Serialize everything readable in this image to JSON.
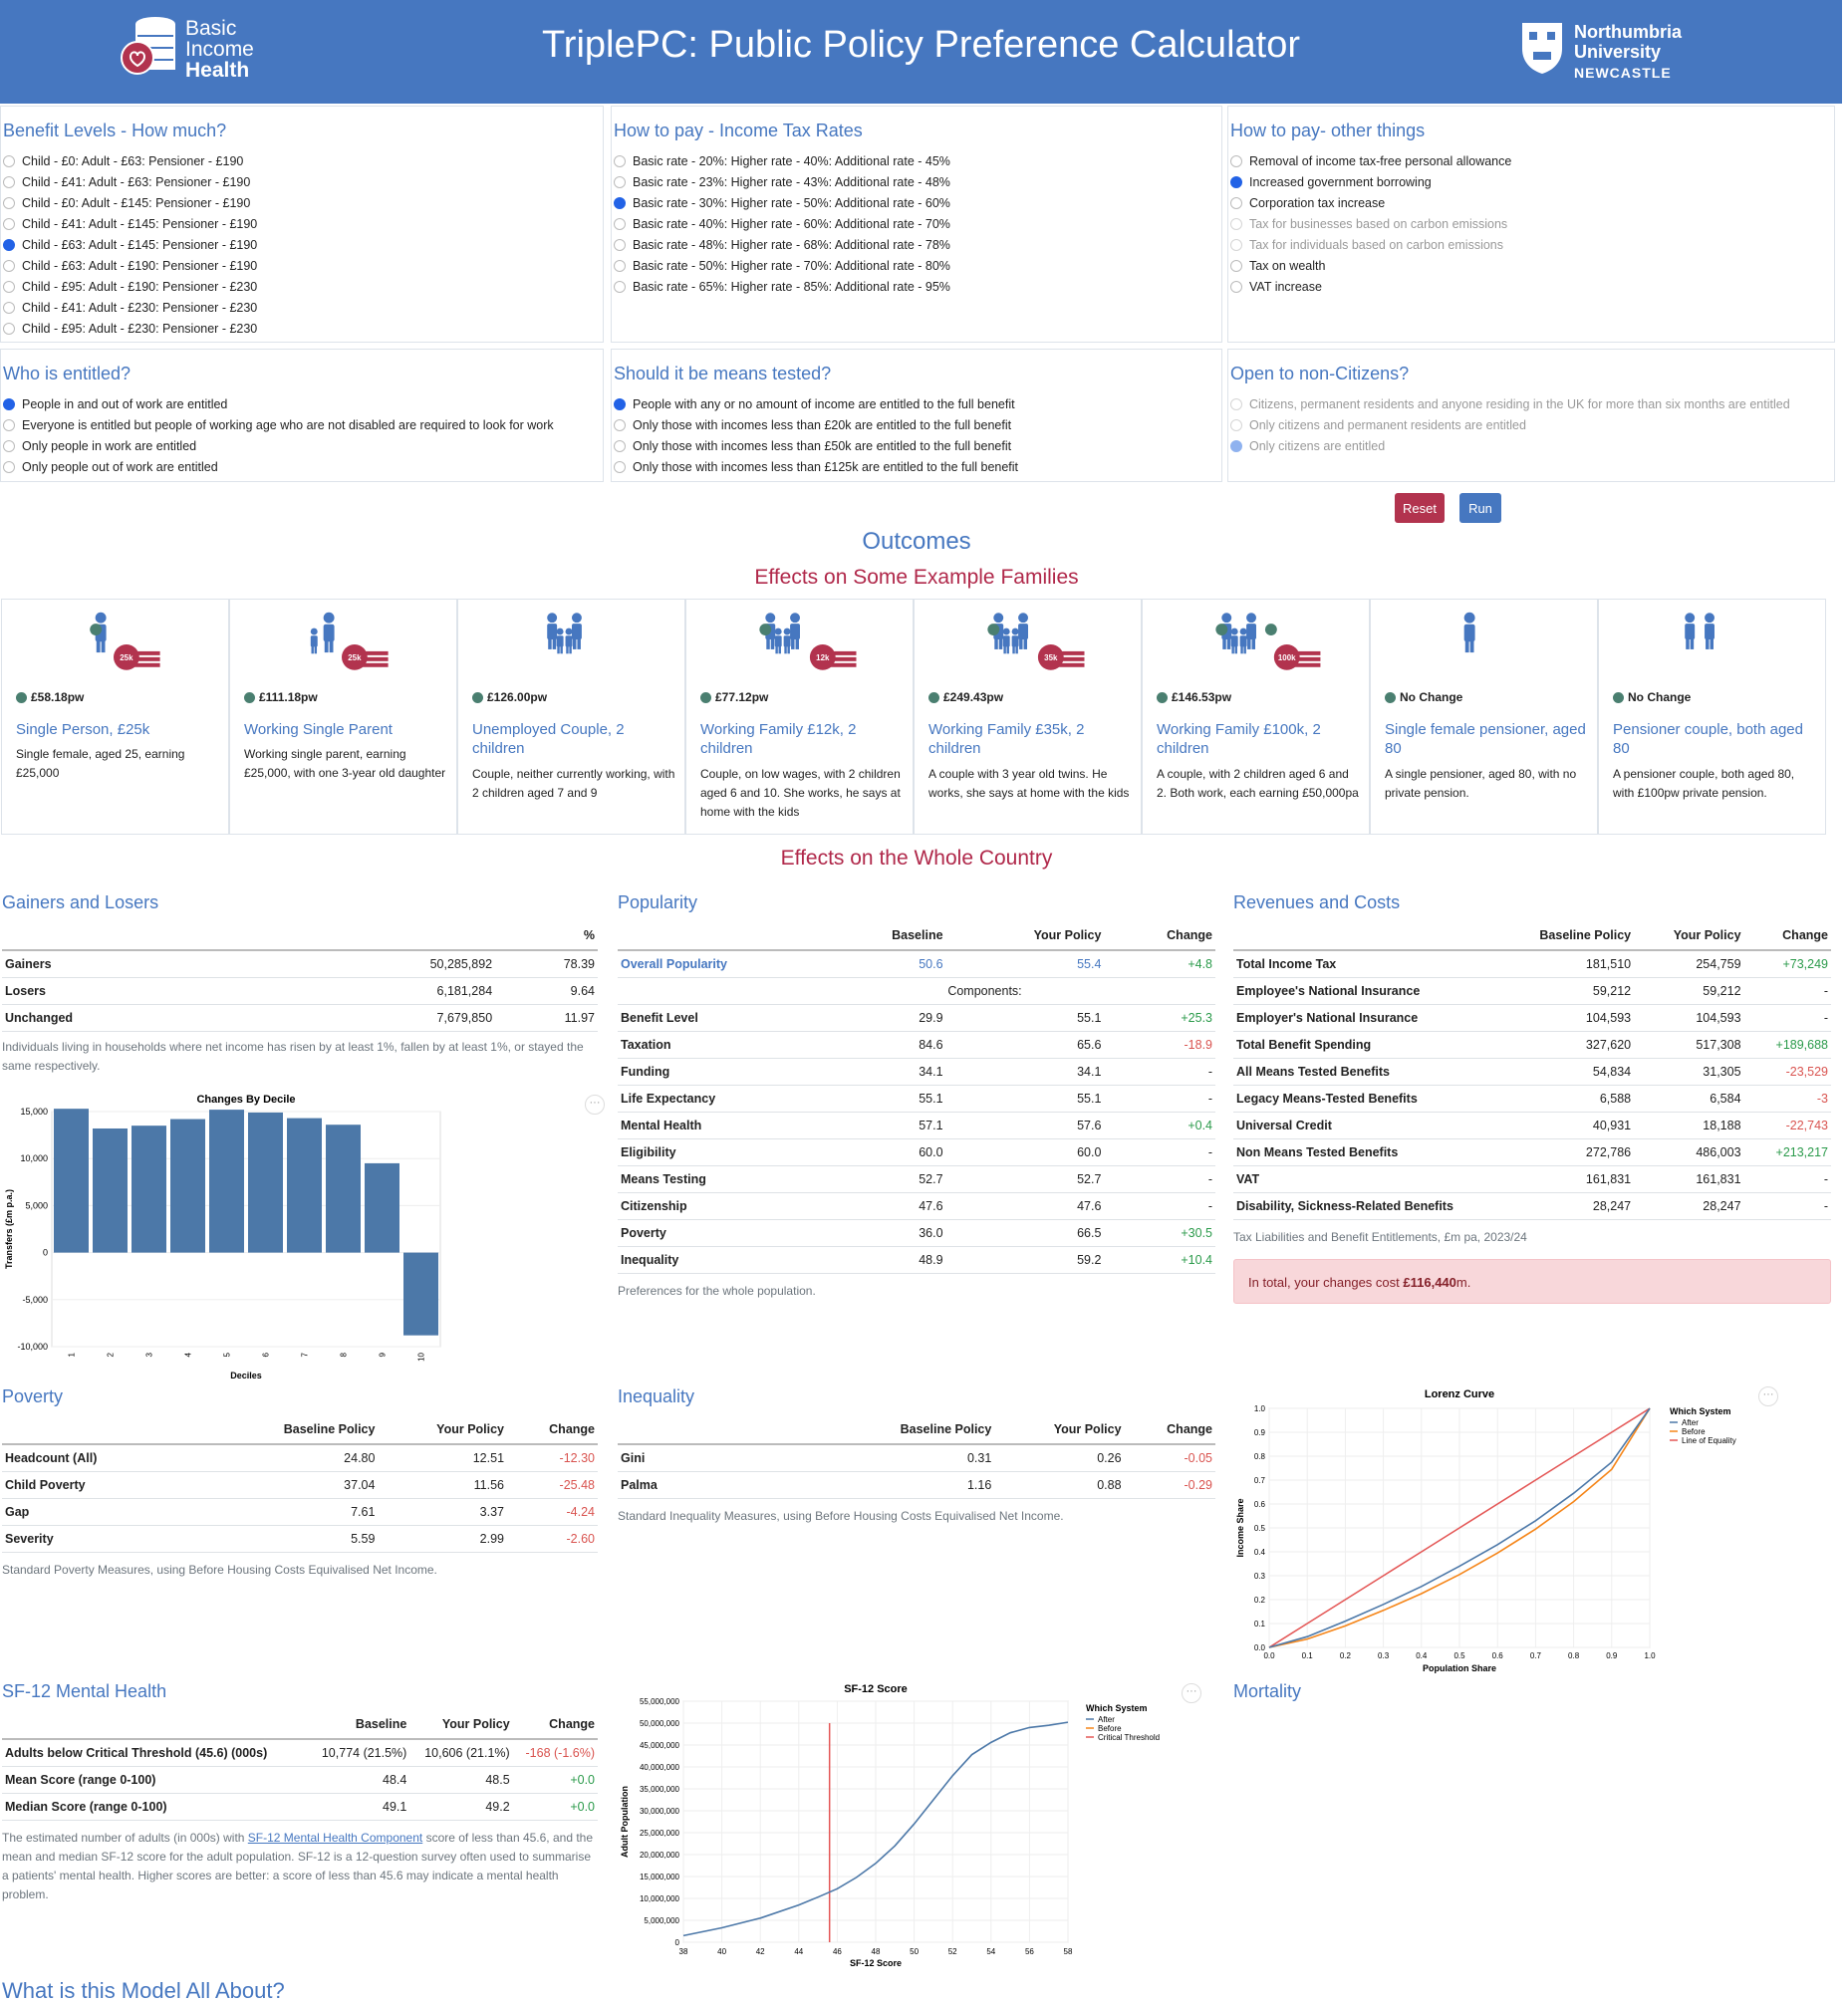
{
  "header": {
    "title": "TriplePC: Public Policy Preference Calculator",
    "logo_left": {
      "line1": "Basic",
      "line2": "Income",
      "line3": "Health"
    },
    "logo_right": {
      "line1": "Northumbria",
      "line2": "University",
      "line3": "NEWCASTLE"
    }
  },
  "panels": {
    "benefit_levels": {
      "title": "Benefit Levels - How much?",
      "selected": 4,
      "options": [
        "Child - £0: Adult - £63: Pensioner - £190",
        "Child - £41: Adult - £63: Pensioner - £190",
        "Child - £0: Adult - £145: Pensioner - £190",
        "Child - £41: Adult - £145: Pensioner - £190",
        "Child - £63: Adult - £145: Pensioner - £190",
        "Child - £63: Adult - £190: Pensioner - £190",
        "Child - £95: Adult - £190: Pensioner - £230",
        "Child - £41: Adult - £230: Pensioner - £230",
        "Child - £95: Adult - £230: Pensioner - £230"
      ]
    },
    "income_tax": {
      "title": "How to pay - Income Tax Rates",
      "selected": 2,
      "options": [
        "Basic rate - 20%: Higher rate - 40%: Additional rate - 45%",
        "Basic rate - 23%: Higher rate - 43%: Additional rate - 48%",
        "Basic rate - 30%: Higher rate - 50%: Additional rate - 60%",
        "Basic rate - 40%: Higher rate - 60%: Additional rate - 70%",
        "Basic rate - 48%: Higher rate - 68%: Additional rate - 78%",
        "Basic rate - 50%: Higher rate - 70%: Additional rate - 80%",
        "Basic rate - 65%: Higher rate - 85%: Additional rate - 95%"
      ]
    },
    "other_pay": {
      "title": "How to pay- other things",
      "selected": 1,
      "disabled": [
        3,
        4
      ],
      "options": [
        "Removal of income tax-free personal allowance",
        "Increased government borrowing",
        "Corporation tax increase",
        "Tax for businesses based on carbon emissions",
        "Tax for individuals based on carbon emissions",
        "Tax on wealth",
        "VAT increase"
      ]
    },
    "entitled": {
      "title": "Who is entitled?",
      "selected": 0,
      "options": [
        "People in and out of work are entitled",
        "Everyone is entitled but people of working age who are not disabled are required to look for work",
        "Only people in work are entitled",
        "Only people out of work are entitled"
      ]
    },
    "means_tested": {
      "title": "Should it be means tested?",
      "selected": 0,
      "options": [
        "People with any or no amount of income are entitled to the full benefit",
        "Only those with incomes less than £20k are entitled to the full benefit",
        "Only those with incomes less than £50k are entitled to the full benefit",
        "Only those with incomes less than £125k are entitled to the full benefit"
      ]
    },
    "citizens": {
      "title": "Open to non-Citizens?",
      "selected": 2,
      "disabled": [
        0,
        1,
        2
      ],
      "options": [
        "Citizens, permanent residents and anyone residing in the UK for more than six months are entitled",
        "Only citizens and permanent residents are entitled",
        "Only citizens are entitled"
      ]
    }
  },
  "buttons": {
    "reset": "Reset",
    "run": "Run"
  },
  "outcomes": {
    "title": "Outcomes",
    "families_title": "Effects on Some Example Families",
    "families": [
      {
        "amount": "£58.18pw",
        "name": "Single Person, £25k",
        "desc": "Single female, aged 25, earning £25,000",
        "badge": "25k",
        "icon": "single-person-icon"
      },
      {
        "amount": "£111.18pw",
        "name": "Working Single Parent",
        "desc": "Working single parent, earning £25,000, with one 3-year old daughter",
        "badge": "25k",
        "icon": "single-parent-icon"
      },
      {
        "amount": "£126.00pw",
        "name": "Unemployed Couple, 2 children",
        "desc": "Couple, neither currently working, with 2 children aged 7 and 9",
        "badge": "",
        "icon": "family-icon"
      },
      {
        "amount": "£77.12pw",
        "name": "Working Family £12k, 2 children",
        "desc": "Couple, on low wages, with 2 children aged 6 and 10. She works, he says at home with the kids",
        "badge": "12k",
        "icon": "family-icon"
      },
      {
        "amount": "£249.43pw",
        "name": "Working Family £35k, 2 children",
        "desc": "A couple with 3 year old twins. He works, she says at home with the kids",
        "badge": "35k",
        "icon": "family-icon"
      },
      {
        "amount": "£146.53pw",
        "name": "Working Family £100k, 2 children",
        "desc": "A couple, with 2 children aged 6 and 2. Both work, each earning £50,000pa",
        "badge": "100k",
        "icon": "family-icon"
      },
      {
        "amount": "No Change",
        "name": "Single female pensioner, aged 80",
        "desc": "A single pensioner, aged 80, with no private pension.",
        "badge": "",
        "icon": "pensioner-icon"
      },
      {
        "amount": "No Change",
        "name": "Pensioner couple, both aged 80",
        "desc": "A pensioner couple, both aged 80, with £100pw private pension.",
        "badge": "",
        "icon": "pensioner-couple-icon"
      }
    ],
    "whole_title": "Effects on the Whole Country"
  },
  "gainers": {
    "title": "Gainers and Losers",
    "pct_header": "%",
    "rows": [
      {
        "label": "Gainers",
        "count": "50,285,892",
        "pct": "78.39"
      },
      {
        "label": "Losers",
        "count": "6,181,284",
        "pct": "9.64"
      },
      {
        "label": "Unchanged",
        "count": "7,679,850",
        "pct": "11.97"
      }
    ],
    "note": "Individuals living in households where net income has risen by at least 1%, fallen by at least 1%, or stayed the same respectively."
  },
  "popularity": {
    "title": "Popularity",
    "headers": [
      "",
      "Baseline",
      "Your Policy",
      "Change"
    ],
    "overall": {
      "label": "Overall Popularity",
      "baseline": "50.6",
      "policy": "55.4",
      "change": "+4.8"
    },
    "components_label": "Components:",
    "rows": [
      {
        "label": "Benefit Level",
        "baseline": "29.9",
        "policy": "55.1",
        "change": "+25.3"
      },
      {
        "label": "Taxation",
        "baseline": "84.6",
        "policy": "65.6",
        "change": "-18.9"
      },
      {
        "label": "Funding",
        "baseline": "34.1",
        "policy": "34.1",
        "change": "-"
      },
      {
        "label": "Life Expectancy",
        "baseline": "55.1",
        "policy": "55.1",
        "change": "-"
      },
      {
        "label": "Mental Health",
        "baseline": "57.1",
        "policy": "57.6",
        "change": "+0.4"
      },
      {
        "label": "Eligibility",
        "baseline": "60.0",
        "policy": "60.0",
        "change": "-"
      },
      {
        "label": "Means Testing",
        "baseline": "52.7",
        "policy": "52.7",
        "change": "-"
      },
      {
        "label": "Citizenship",
        "baseline": "47.6",
        "policy": "47.6",
        "change": "-"
      },
      {
        "label": "Poverty",
        "baseline": "36.0",
        "policy": "66.5",
        "change": "+30.5"
      },
      {
        "label": "Inequality",
        "baseline": "48.9",
        "policy": "59.2",
        "change": "+10.4"
      }
    ],
    "note": "Preferences for the whole population."
  },
  "revenues": {
    "title": "Revenues and Costs",
    "headers": [
      "",
      "Baseline Policy",
      "Your Policy",
      "Change"
    ],
    "rows": [
      {
        "label": "Total Income Tax",
        "baseline": "181,510",
        "policy": "254,759",
        "change": "+73,249"
      },
      {
        "label": "Employee's National Insurance",
        "baseline": "59,212",
        "policy": "59,212",
        "change": "-"
      },
      {
        "label": "Employer's National Insurance",
        "baseline": "104,593",
        "policy": "104,593",
        "change": "-"
      },
      {
        "label": "Total Benefit Spending",
        "baseline": "327,620",
        "policy": "517,308",
        "change": "+189,688"
      },
      {
        "label": "All Means Tested Benefits",
        "baseline": "54,834",
        "policy": "31,305",
        "change": "-23,529"
      },
      {
        "label": "Legacy Means-Tested Benefits",
        "baseline": "6,588",
        "policy": "6,584",
        "change": "-3"
      },
      {
        "label": "Universal Credit",
        "baseline": "40,931",
        "policy": "18,188",
        "change": "-22,743"
      },
      {
        "label": "Non Means Tested Benefits",
        "baseline": "272,786",
        "policy": "486,003",
        "change": "+213,217"
      },
      {
        "label": "VAT",
        "baseline": "161,831",
        "policy": "161,831",
        "change": "-"
      },
      {
        "label": "Disability, Sickness-Related Benefits",
        "baseline": "28,247",
        "policy": "28,247",
        "change": "-"
      }
    ],
    "note": "Tax Liabilities and Benefit Entitlements, £m pa, 2023/24",
    "alert_prefix": "In total, your changes cost ",
    "alert_value": "£116,440",
    "alert_suffix": "m."
  },
  "poverty": {
    "title": "Poverty",
    "headers": [
      "",
      "Baseline Policy",
      "Your Policy",
      "Change"
    ],
    "rows": [
      {
        "label": "Headcount (All)",
        "baseline": "24.80",
        "policy": "12.51",
        "change": "-12.30"
      },
      {
        "label": "Child Poverty",
        "baseline": "37.04",
        "policy": "11.56",
        "change": "-25.48"
      },
      {
        "label": "Gap",
        "baseline": "7.61",
        "policy": "3.37",
        "change": "-4.24"
      },
      {
        "label": "Severity",
        "baseline": "5.59",
        "policy": "2.99",
        "change": "-2.60"
      }
    ],
    "note": "Standard Poverty Measures, using Before Housing Costs Equivalised Net Income."
  },
  "inequality": {
    "title": "Inequality",
    "headers": [
      "",
      "Baseline Policy",
      "Your Policy",
      "Change"
    ],
    "rows": [
      {
        "label": "Gini",
        "baseline": "0.31",
        "policy": "0.26",
        "change": "-0.05"
      },
      {
        "label": "Palma",
        "baseline": "1.16",
        "policy": "0.88",
        "change": "-0.29"
      }
    ],
    "note": "Standard Inequality Measures, using Before Housing Costs Equivalised Net Income."
  },
  "sf12": {
    "title": "SF-12 Mental Health",
    "headers": [
      "",
      "Baseline",
      "Your Policy",
      "Change"
    ],
    "rows": [
      {
        "label": "Adults below Critical Threshold (45.6) (000s)",
        "baseline": "10,774 (21.5%)",
        "policy": "10,606 (21.1%)",
        "change": "-168 (-1.6%)"
      },
      {
        "label": "Mean Score (range 0-100)",
        "baseline": "48.4",
        "policy": "48.5",
        "change": "+0.0"
      },
      {
        "label": "Median Score (range 0-100)",
        "baseline": "49.1",
        "policy": "49.2",
        "change": "+0.0"
      }
    ],
    "note_before": "The estimated number of adults (in 000s) with ",
    "note_link": "SF-12 Mental Health Component",
    "note_after": " score of less than 45.6, and the mean and median SF-12 score for the adult population. SF-12 is a 12-question survey often used to summarise a patients' mental health. Higher scores are better: a score of less than 45.6 may indicate a mental health problem."
  },
  "mortality": {
    "title": "Mortality"
  },
  "about": {
    "title": "What is this Model All About?"
  },
  "menu_dots": "···",
  "colors": {
    "header": "#4677c0",
    "accent_red": "#b0284a",
    "bar": "#4c78a8",
    "after": "#4c78a8",
    "before": "#f58518",
    "threshold": "#e45756"
  },
  "chart_data": [
    {
      "type": "bar",
      "title": "Changes By Decile",
      "xlabel": "Deciles",
      "ylabel": "Transfers (£m p.a.)",
      "categories": [
        "1",
        "2",
        "3",
        "4",
        "5",
        "6",
        "7",
        "8",
        "9",
        "10"
      ],
      "values": [
        15300,
        13200,
        13500,
        14200,
        15200,
        14900,
        14300,
        13600,
        9500,
        -8800
      ],
      "ylim": [
        -10000,
        15000
      ],
      "yticks": [
        "15,000",
        "10,000",
        "5,000",
        "0",
        "-5,000",
        "-10,000"
      ]
    },
    {
      "type": "line",
      "title": "Lorenz Curve",
      "xlabel": "Population Share",
      "ylabel": "Income Share",
      "xlim": [
        0,
        1
      ],
      "ylim": [
        0,
        1
      ],
      "ticks": [
        "0.0",
        "0.1",
        "0.2",
        "0.3",
        "0.4",
        "0.5",
        "0.6",
        "0.7",
        "0.8",
        "0.9",
        "1.0"
      ],
      "legend_title": "Which System",
      "x": [
        0,
        0.1,
        0.2,
        0.3,
        0.4,
        0.5,
        0.6,
        0.7,
        0.8,
        0.9,
        1.0
      ],
      "series": [
        {
          "name": "After",
          "values": [
            0,
            0.045,
            0.11,
            0.18,
            0.255,
            0.34,
            0.43,
            0.53,
            0.645,
            0.775,
            1.0
          ]
        },
        {
          "name": "Before",
          "values": [
            0,
            0.035,
            0.09,
            0.155,
            0.225,
            0.305,
            0.395,
            0.495,
            0.61,
            0.745,
            1.0
          ]
        },
        {
          "name": "Line of Equality",
          "values": [
            0,
            0.1,
            0.2,
            0.3,
            0.4,
            0.5,
            0.6,
            0.7,
            0.8,
            0.9,
            1.0
          ]
        }
      ]
    },
    {
      "type": "line",
      "title": "SF-12 Score",
      "xlabel": "SF-12 Score",
      "ylabel": "Adult Population",
      "xlim": [
        38,
        58
      ],
      "ylim": [
        0,
        55000000
      ],
      "xticks": [
        "38",
        "40",
        "42",
        "44",
        "46",
        "48",
        "50",
        "52",
        "54",
        "56",
        "58"
      ],
      "yticks": [
        "0",
        "5,000,000",
        "10,000,000",
        "15,000,000",
        "20,000,000",
        "25,000,000",
        "30,000,000",
        "35,000,000",
        "40,000,000",
        "45,000,000",
        "50,000,000",
        "55,000,000"
      ],
      "legend_title": "Which System",
      "legend": [
        "After",
        "Before",
        "Critical Threshold"
      ],
      "critical_threshold": 45.6,
      "x": [
        38,
        40,
        42,
        44,
        45,
        46,
        47,
        48,
        49,
        50,
        51,
        52,
        53,
        54,
        55,
        56,
        57,
        58
      ],
      "series": [
        {
          "name": "After",
          "values": [
            1500000,
            3300000,
            5500000,
            8500000,
            10300000,
            12200000,
            14800000,
            18000000,
            22000000,
            27000000,
            32500000,
            38000000,
            42800000,
            45600000,
            47800000,
            49000000,
            49500000,
            50200000
          ]
        }
      ]
    }
  ]
}
